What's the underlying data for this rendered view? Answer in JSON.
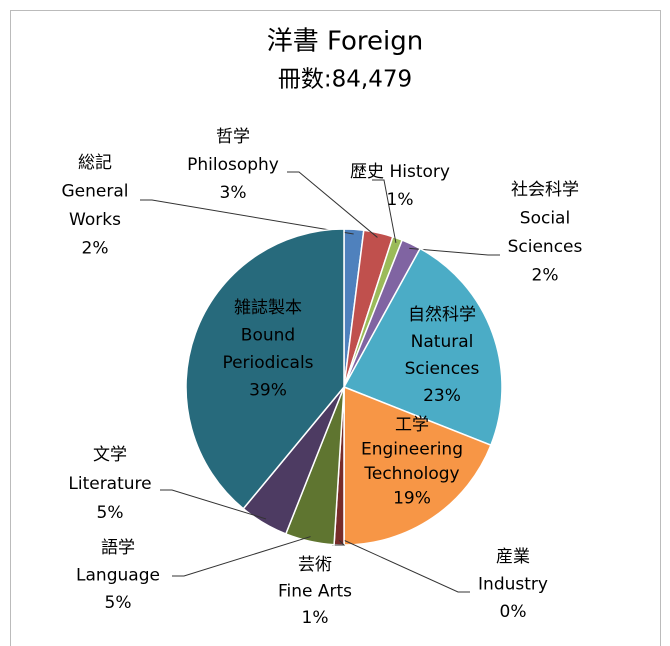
{
  "chart_data": {
    "type": "pie",
    "title": "洋書 Foreign",
    "subtitle": "冊数:84,479",
    "categories": [
      [
        "総記",
        "General",
        "Works"
      ],
      [
        "哲学",
        "Philosophy"
      ],
      [
        "歴史 History"
      ],
      [
        "社会科学",
        "Social",
        "Sciences"
      ],
      [
        "自然科学",
        "Natural",
        "Sciences"
      ],
      [
        "工学",
        "Engineering",
        "Technology"
      ],
      [
        "産業",
        "Industry"
      ],
      [
        "芸術",
        "Fine Arts"
      ],
      [
        "語学",
        "Language"
      ],
      [
        "文学",
        "Literature"
      ],
      [
        "雑誌製本",
        "Bound",
        "Periodicals"
      ]
    ],
    "values": [
      2,
      3,
      1,
      2,
      23,
      19,
      0,
      1,
      5,
      5,
      39
    ],
    "value_labels": [
      "2%",
      "3%",
      "1%",
      "2%",
      "23%",
      "19%",
      "0%",
      "1%",
      "5%",
      "5%",
      "39%"
    ],
    "colors": [
      "#4f81bd",
      "#c0504d",
      "#9bbb59",
      "#8064a2",
      "#4bacc6",
      "#f79646",
      "#2c4d75",
      "#772c2a",
      "#5f7530",
      "#4d3b62",
      "#276a7c"
    ]
  }
}
